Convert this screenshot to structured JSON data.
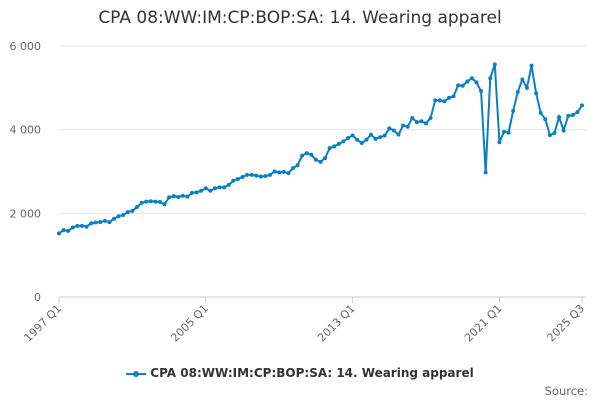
{
  "chart_data": {
    "type": "line",
    "title": "CPA 08:WW:IM:CP:BOP:SA: 14. Wearing apparel",
    "xlabel": "",
    "ylabel": "",
    "ylim": [
      0,
      6000
    ],
    "y_ticks": [
      "0",
      "2 000",
      "4 000",
      "6 000"
    ],
    "y_tick_values": [
      0,
      2000,
      4000,
      6000
    ],
    "x_tick_labels": [
      "1997 Q1",
      "2005 Q1",
      "2013 Q1",
      "2021 Q1",
      "2025 Q3"
    ],
    "x_start": "1997 Q1",
    "x_end": "2025 Q3",
    "grid": true,
    "legend_position": "bottom",
    "color": "#0b7fc3",
    "series": [
      {
        "name": "CPA 08:WW:IM:CP:BOP:SA: 14. Wearing apparel",
        "values": [
          1520,
          1600,
          1580,
          1660,
          1700,
          1700,
          1680,
          1760,
          1780,
          1790,
          1820,
          1790,
          1870,
          1930,
          1960,
          2030,
          2060,
          2150,
          2250,
          2280,
          2290,
          2280,
          2270,
          2220,
          2380,
          2410,
          2390,
          2420,
          2400,
          2490,
          2500,
          2540,
          2600,
          2540,
          2600,
          2620,
          2620,
          2680,
          2780,
          2820,
          2870,
          2920,
          2920,
          2900,
          2880,
          2890,
          2920,
          3000,
          2980,
          2990,
          2960,
          3080,
          3150,
          3380,
          3440,
          3400,
          3280,
          3230,
          3320,
          3560,
          3600,
          3660,
          3720,
          3800,
          3860,
          3760,
          3680,
          3760,
          3880,
          3780,
          3820,
          3860,
          4030,
          3980,
          3880,
          4100,
          4070,
          4280,
          4180,
          4200,
          4150,
          4280,
          4700,
          4700,
          4680,
          4760,
          4800,
          5060,
          5050,
          5150,
          5230,
          5130,
          4920,
          2980,
          5230,
          5560,
          3700,
          3950,
          3930,
          4450,
          4900,
          5200,
          5000,
          5530,
          4870,
          4400,
          4250,
          3870,
          3920,
          4300,
          3980,
          4330,
          4350,
          4420,
          4580
        ]
      }
    ]
  },
  "source_label": "Source:"
}
